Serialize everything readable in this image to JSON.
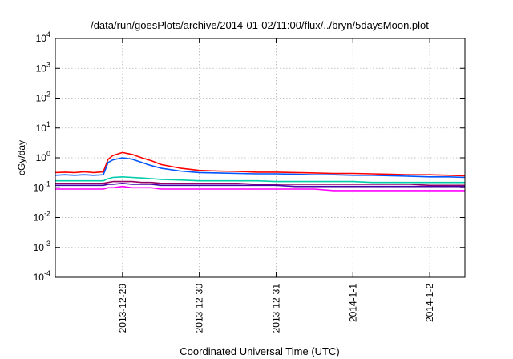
{
  "chart_data": {
    "type": "line",
    "title": "/data/run/goesPlots/archive/2014-01-02/11:00/flux/../bryn/5daysMoon.plot",
    "xlabel": "Coordinated Universal Time (UTC)",
    "ylabel": "cGy/day",
    "yscale": "log",
    "ylim": [
      0.0001,
      10000
    ],
    "xlim": [
      "2013-12-28 03:00",
      "2014-01-02 11:00"
    ],
    "x_ticks": [
      {
        "label": "2013-12-29",
        "x": "2013-12-29 00:00"
      },
      {
        "label": "2013-12-30",
        "x": "2013-12-30 00:00"
      },
      {
        "label": "2013-12-31",
        "x": "2013-12-31 00:00"
      },
      {
        "label": "2014-1-1",
        "x": "2014-01-01 00:00"
      },
      {
        "label": "2014-1-2",
        "x": "2014-01-02 00:00"
      }
    ],
    "y_ticks": [
      {
        "base": "10",
        "exp": "-4",
        "value": 0.0001
      },
      {
        "base": "10",
        "exp": "-3",
        "value": 0.001
      },
      {
        "base": "10",
        "exp": "-2",
        "value": 0.01
      },
      {
        "base": "10",
        "exp": "-1",
        "value": 0.1
      },
      {
        "base": "10",
        "exp": "0",
        "value": 1
      },
      {
        "base": "10",
        "exp": "1",
        "value": 10
      },
      {
        "base": "10",
        "exp": "2",
        "value": 100
      },
      {
        "base": "10",
        "exp": "3",
        "value": 1000
      },
      {
        "base": "10",
        "exp": "4",
        "value": 10000
      }
    ],
    "grid": true,
    "legend": "none",
    "x": [
      "2013-12-28 03:00",
      "2013-12-28 06:00",
      "2013-12-28 09:00",
      "2013-12-28 12:00",
      "2013-12-28 15:00",
      "2013-12-28 18:00",
      "2013-12-28 19:30",
      "2013-12-28 21:00",
      "2013-12-29 00:00",
      "2013-12-29 03:00",
      "2013-12-29 06:00",
      "2013-12-29 09:00",
      "2013-12-29 12:00",
      "2013-12-29 18:00",
      "2013-12-30 00:00",
      "2013-12-30 06:00",
      "2013-12-30 12:00",
      "2013-12-30 18:00",
      "2013-12-31 00:00",
      "2013-12-31 06:00",
      "2013-12-31 12:00",
      "2013-12-31 18:00",
      "2014-01-01 00:00",
      "2014-01-01 06:00",
      "2014-01-01 12:00",
      "2014-01-01 18:00",
      "2014-01-02 00:00",
      "2014-01-02 06:00",
      "2014-01-02 11:00"
    ],
    "series": [
      {
        "color": "#ff0000",
        "values": [
          0.32,
          0.33,
          0.32,
          0.34,
          0.32,
          0.34,
          0.9,
          1.2,
          1.5,
          1.3,
          1.0,
          0.8,
          0.6,
          0.45,
          0.38,
          0.36,
          0.35,
          0.33,
          0.33,
          0.32,
          0.31,
          0.3,
          0.3,
          0.29,
          0.28,
          0.27,
          0.27,
          0.26,
          0.25
        ]
      },
      {
        "color": "#0055ff",
        "values": [
          0.26,
          0.27,
          0.26,
          0.27,
          0.26,
          0.27,
          0.7,
          0.85,
          1.0,
          0.9,
          0.7,
          0.55,
          0.45,
          0.36,
          0.32,
          0.31,
          0.3,
          0.29,
          0.29,
          0.28,
          0.27,
          0.27,
          0.26,
          0.26,
          0.25,
          0.24,
          0.23,
          0.23,
          0.22
        ]
      },
      {
        "color": "#00ccaa",
        "values": [
          0.17,
          0.17,
          0.17,
          0.17,
          0.17,
          0.17,
          0.2,
          0.22,
          0.23,
          0.22,
          0.21,
          0.2,
          0.19,
          0.18,
          0.17,
          0.17,
          0.17,
          0.17,
          0.16,
          0.16,
          0.16,
          0.16,
          0.16,
          0.15,
          0.15,
          0.15,
          0.15,
          0.15,
          0.15
        ]
      },
      {
        "color": "#990066",
        "values": [
          0.14,
          0.14,
          0.14,
          0.14,
          0.14,
          0.14,
          0.15,
          0.16,
          0.16,
          0.16,
          0.15,
          0.15,
          0.14,
          0.14,
          0.14,
          0.14,
          0.14,
          0.13,
          0.13,
          0.13,
          0.13,
          0.13,
          0.13,
          0.13,
          0.13,
          0.13,
          0.12,
          0.12,
          0.12
        ]
      },
      {
        "color": "#4400aa",
        "values": [
          0.12,
          0.12,
          0.12,
          0.12,
          0.12,
          0.12,
          0.13,
          0.13,
          0.14,
          0.13,
          0.13,
          0.13,
          0.12,
          0.12,
          0.12,
          0.12,
          0.12,
          0.12,
          0.12,
          0.11,
          0.11,
          0.11,
          0.11,
          0.11,
          0.11,
          0.11,
          0.11,
          0.11,
          0.11
        ]
      },
      {
        "color": "#ff00ff",
        "values": [
          0.09,
          0.09,
          0.09,
          0.09,
          0.09,
          0.09,
          0.1,
          0.1,
          0.11,
          0.1,
          0.1,
          0.1,
          0.09,
          0.09,
          0.09,
          0.09,
          0.09,
          0.09,
          0.09,
          0.09,
          0.09,
          0.08,
          0.08,
          0.08,
          0.08,
          0.08,
          0.08,
          0.08,
          0.08
        ]
      }
    ]
  }
}
